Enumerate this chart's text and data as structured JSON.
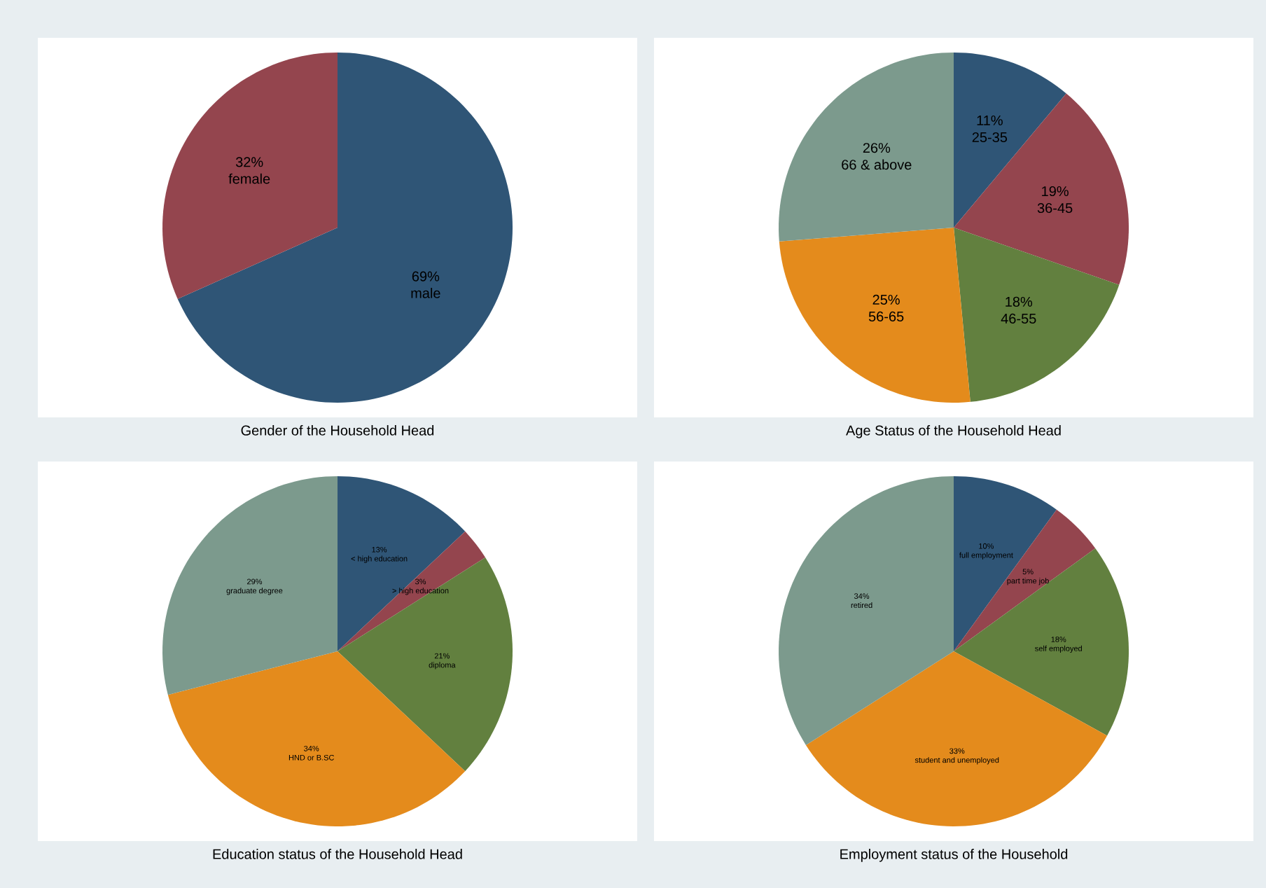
{
  "chart_data": [
    {
      "type": "pie",
      "title": "Gender of the Household Head",
      "categories": [
        "male",
        "female"
      ],
      "values": [
        69,
        32
      ],
      "value_labels": [
        "69%",
        "32%"
      ],
      "colors": [
        "#2f5576",
        "#94454e"
      ]
    },
    {
      "type": "pie",
      "title": "Age Status of the Household Head",
      "categories": [
        "25-35",
        "36-45",
        "46-55",
        "56-65",
        "66 & above"
      ],
      "values": [
        11,
        19,
        18,
        25,
        26
      ],
      "value_labels": [
        "11%",
        "19%",
        "18%",
        "25%",
        "26%"
      ],
      "colors": [
        "#2f5576",
        "#94454e",
        "#62803f",
        "#e48b1c",
        "#7c9a8d"
      ]
    },
    {
      "type": "pie",
      "title": "Education status of the Household Head",
      "categories": [
        "< high education",
        "> high education",
        "diploma",
        "HND or B.SC",
        "graduate degree"
      ],
      "values": [
        13,
        3,
        21,
        34,
        29
      ],
      "value_labels": [
        "13%",
        "3%",
        "21%",
        "34%",
        "29%"
      ],
      "colors": [
        "#2f5576",
        "#94454e",
        "#62803f",
        "#e48b1c",
        "#7c9a8d"
      ]
    },
    {
      "type": "pie",
      "title": "Employment status of the Household",
      "categories": [
        "full employment",
        "part time job",
        "self employed",
        "student and unemployed",
        "retired"
      ],
      "values": [
        10,
        5,
        18,
        33,
        34
      ],
      "value_labels": [
        "10%",
        "5%",
        "18%",
        "33%",
        "34%"
      ],
      "colors": [
        "#2f5576",
        "#94454e",
        "#62803f",
        "#e48b1c",
        "#7c9a8d"
      ]
    }
  ]
}
